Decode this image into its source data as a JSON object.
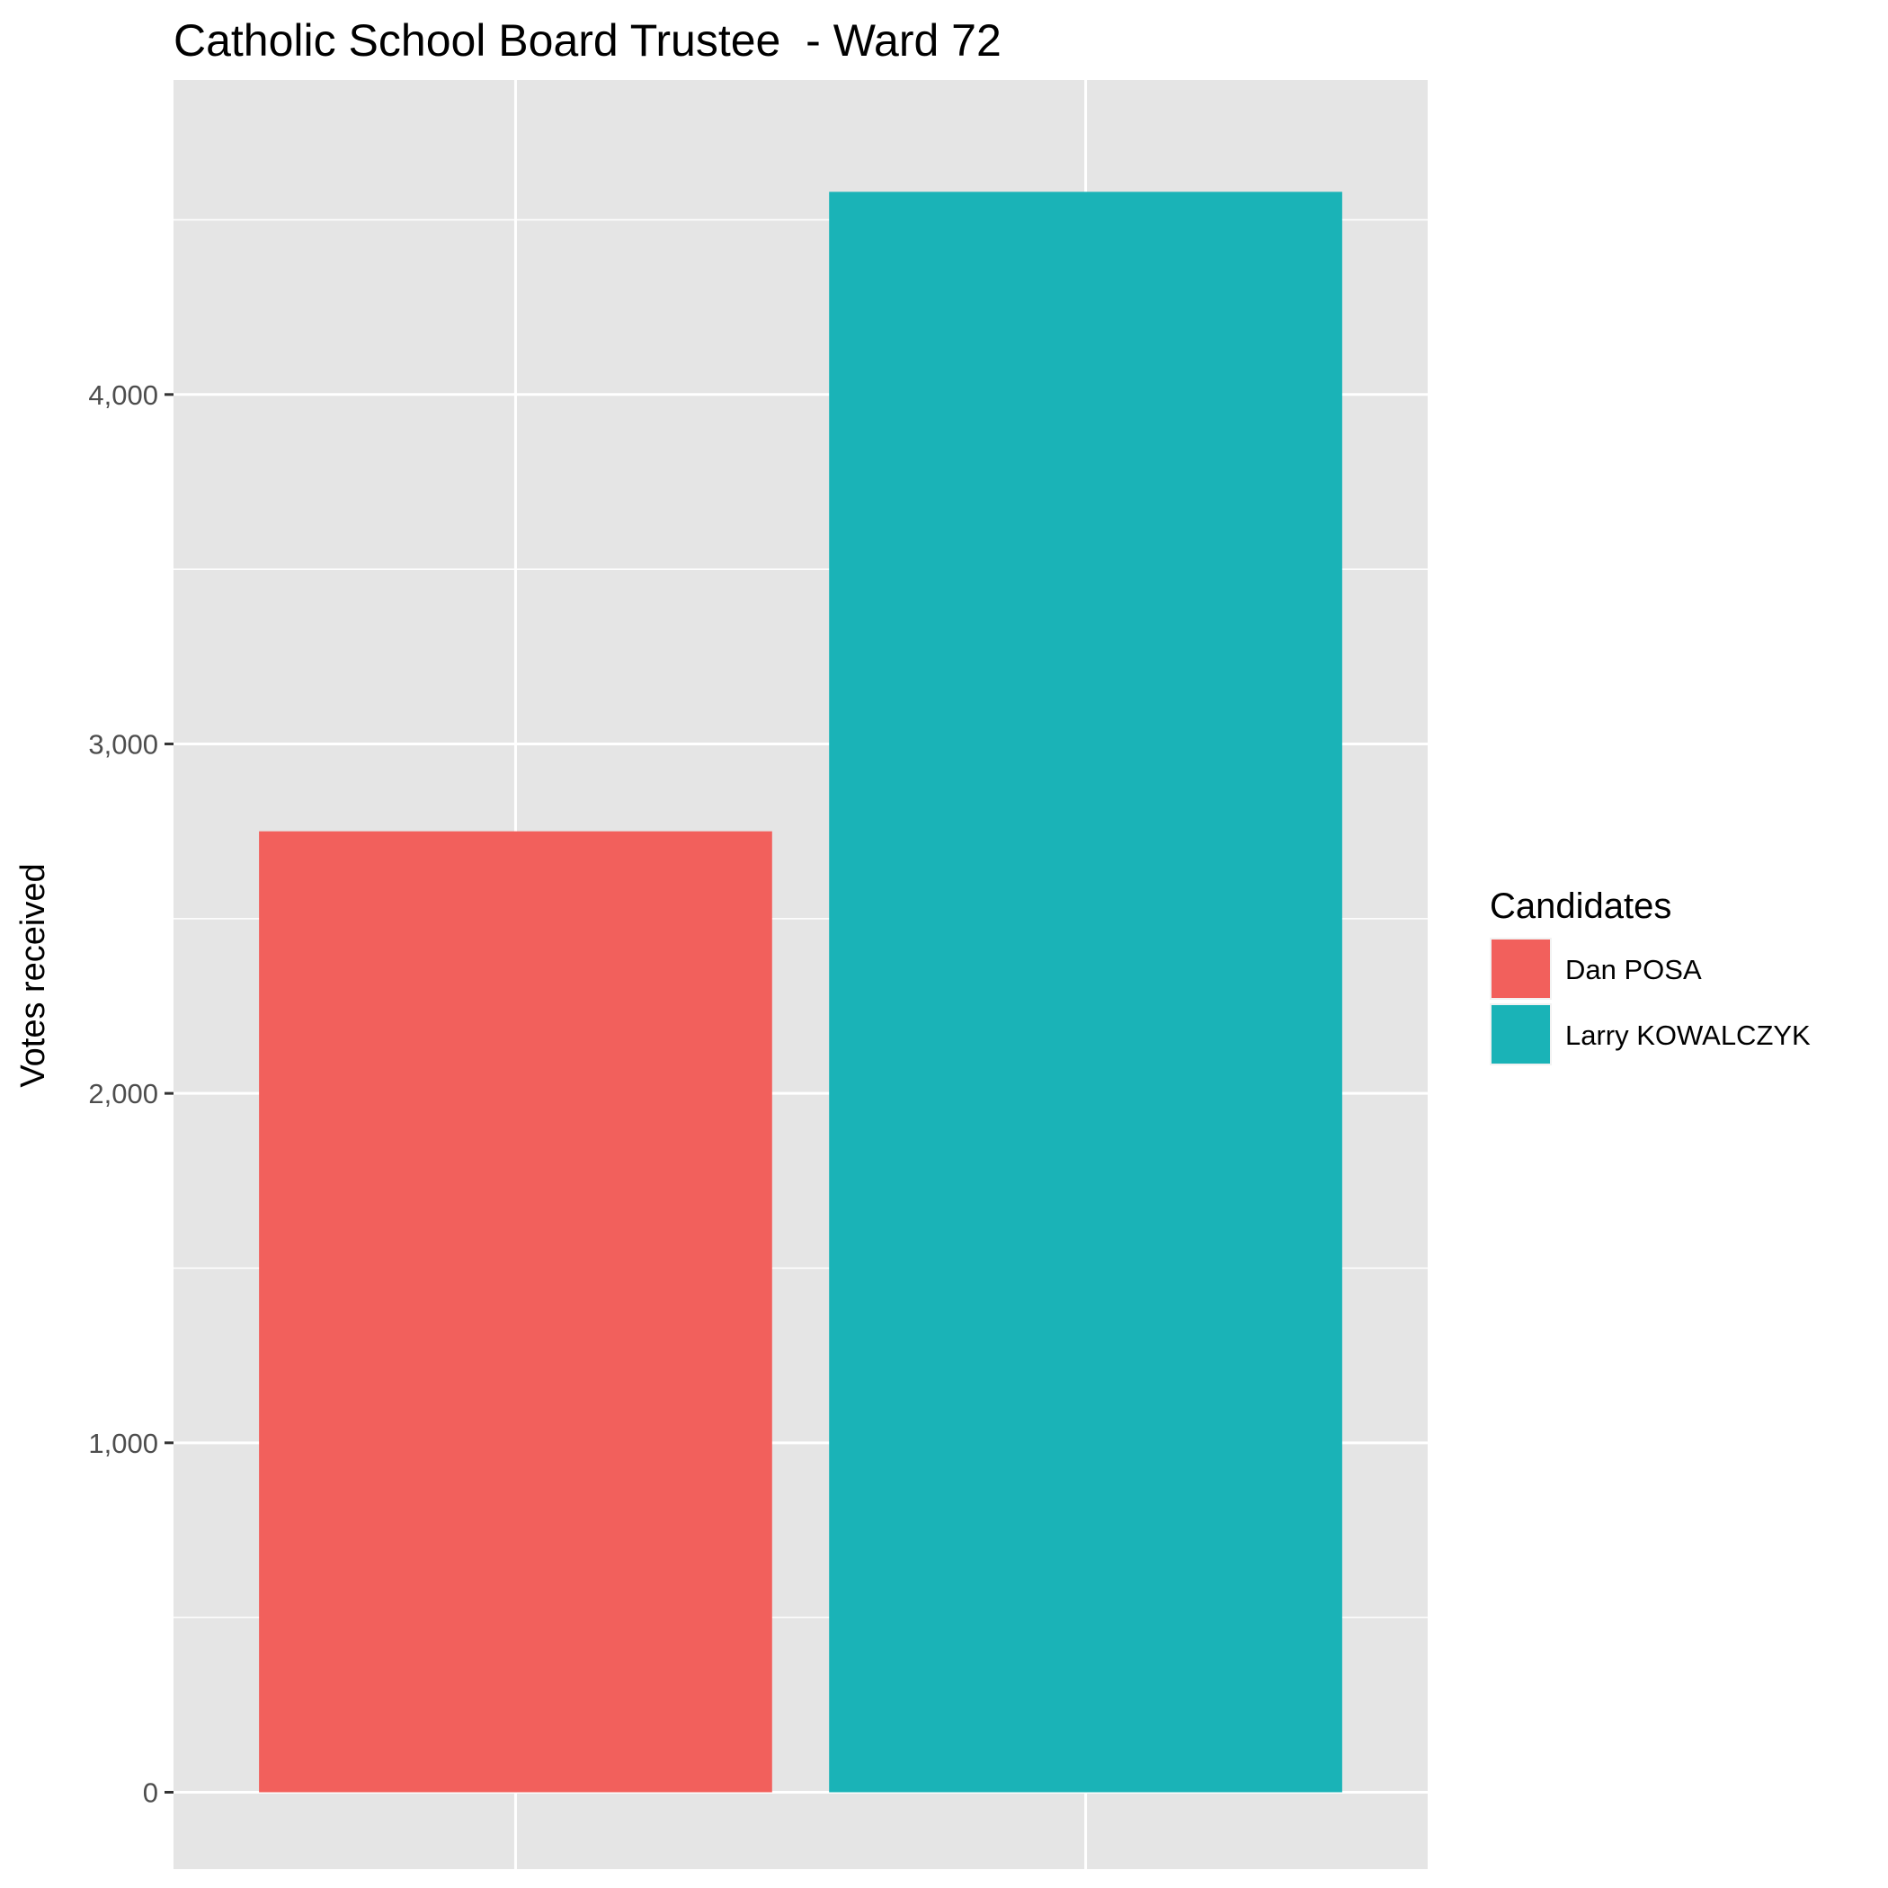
{
  "chart_data": {
    "type": "bar",
    "title": "Catholic School Board Trustee  - Ward 72",
    "xlabel": "",
    "ylabel": "Votes received",
    "categories": [
      "Dan POSA",
      "Larry KOWALCZYK"
    ],
    "values": [
      2750,
      4580
    ],
    "colors": [
      "#F2605C",
      "#1AB3B7"
    ],
    "ylim": [
      -220,
      4900
    ],
    "y_ticks": [
      0,
      1000,
      2000,
      3000,
      4000
    ],
    "y_tick_labels": [
      "0",
      "1,000",
      "2,000",
      "3,000",
      "4,000"
    ],
    "grid": true,
    "legend": {
      "title": "Candidates",
      "position": "right",
      "items": [
        "Dan POSA",
        "Larry KOWALCZYK"
      ]
    }
  }
}
